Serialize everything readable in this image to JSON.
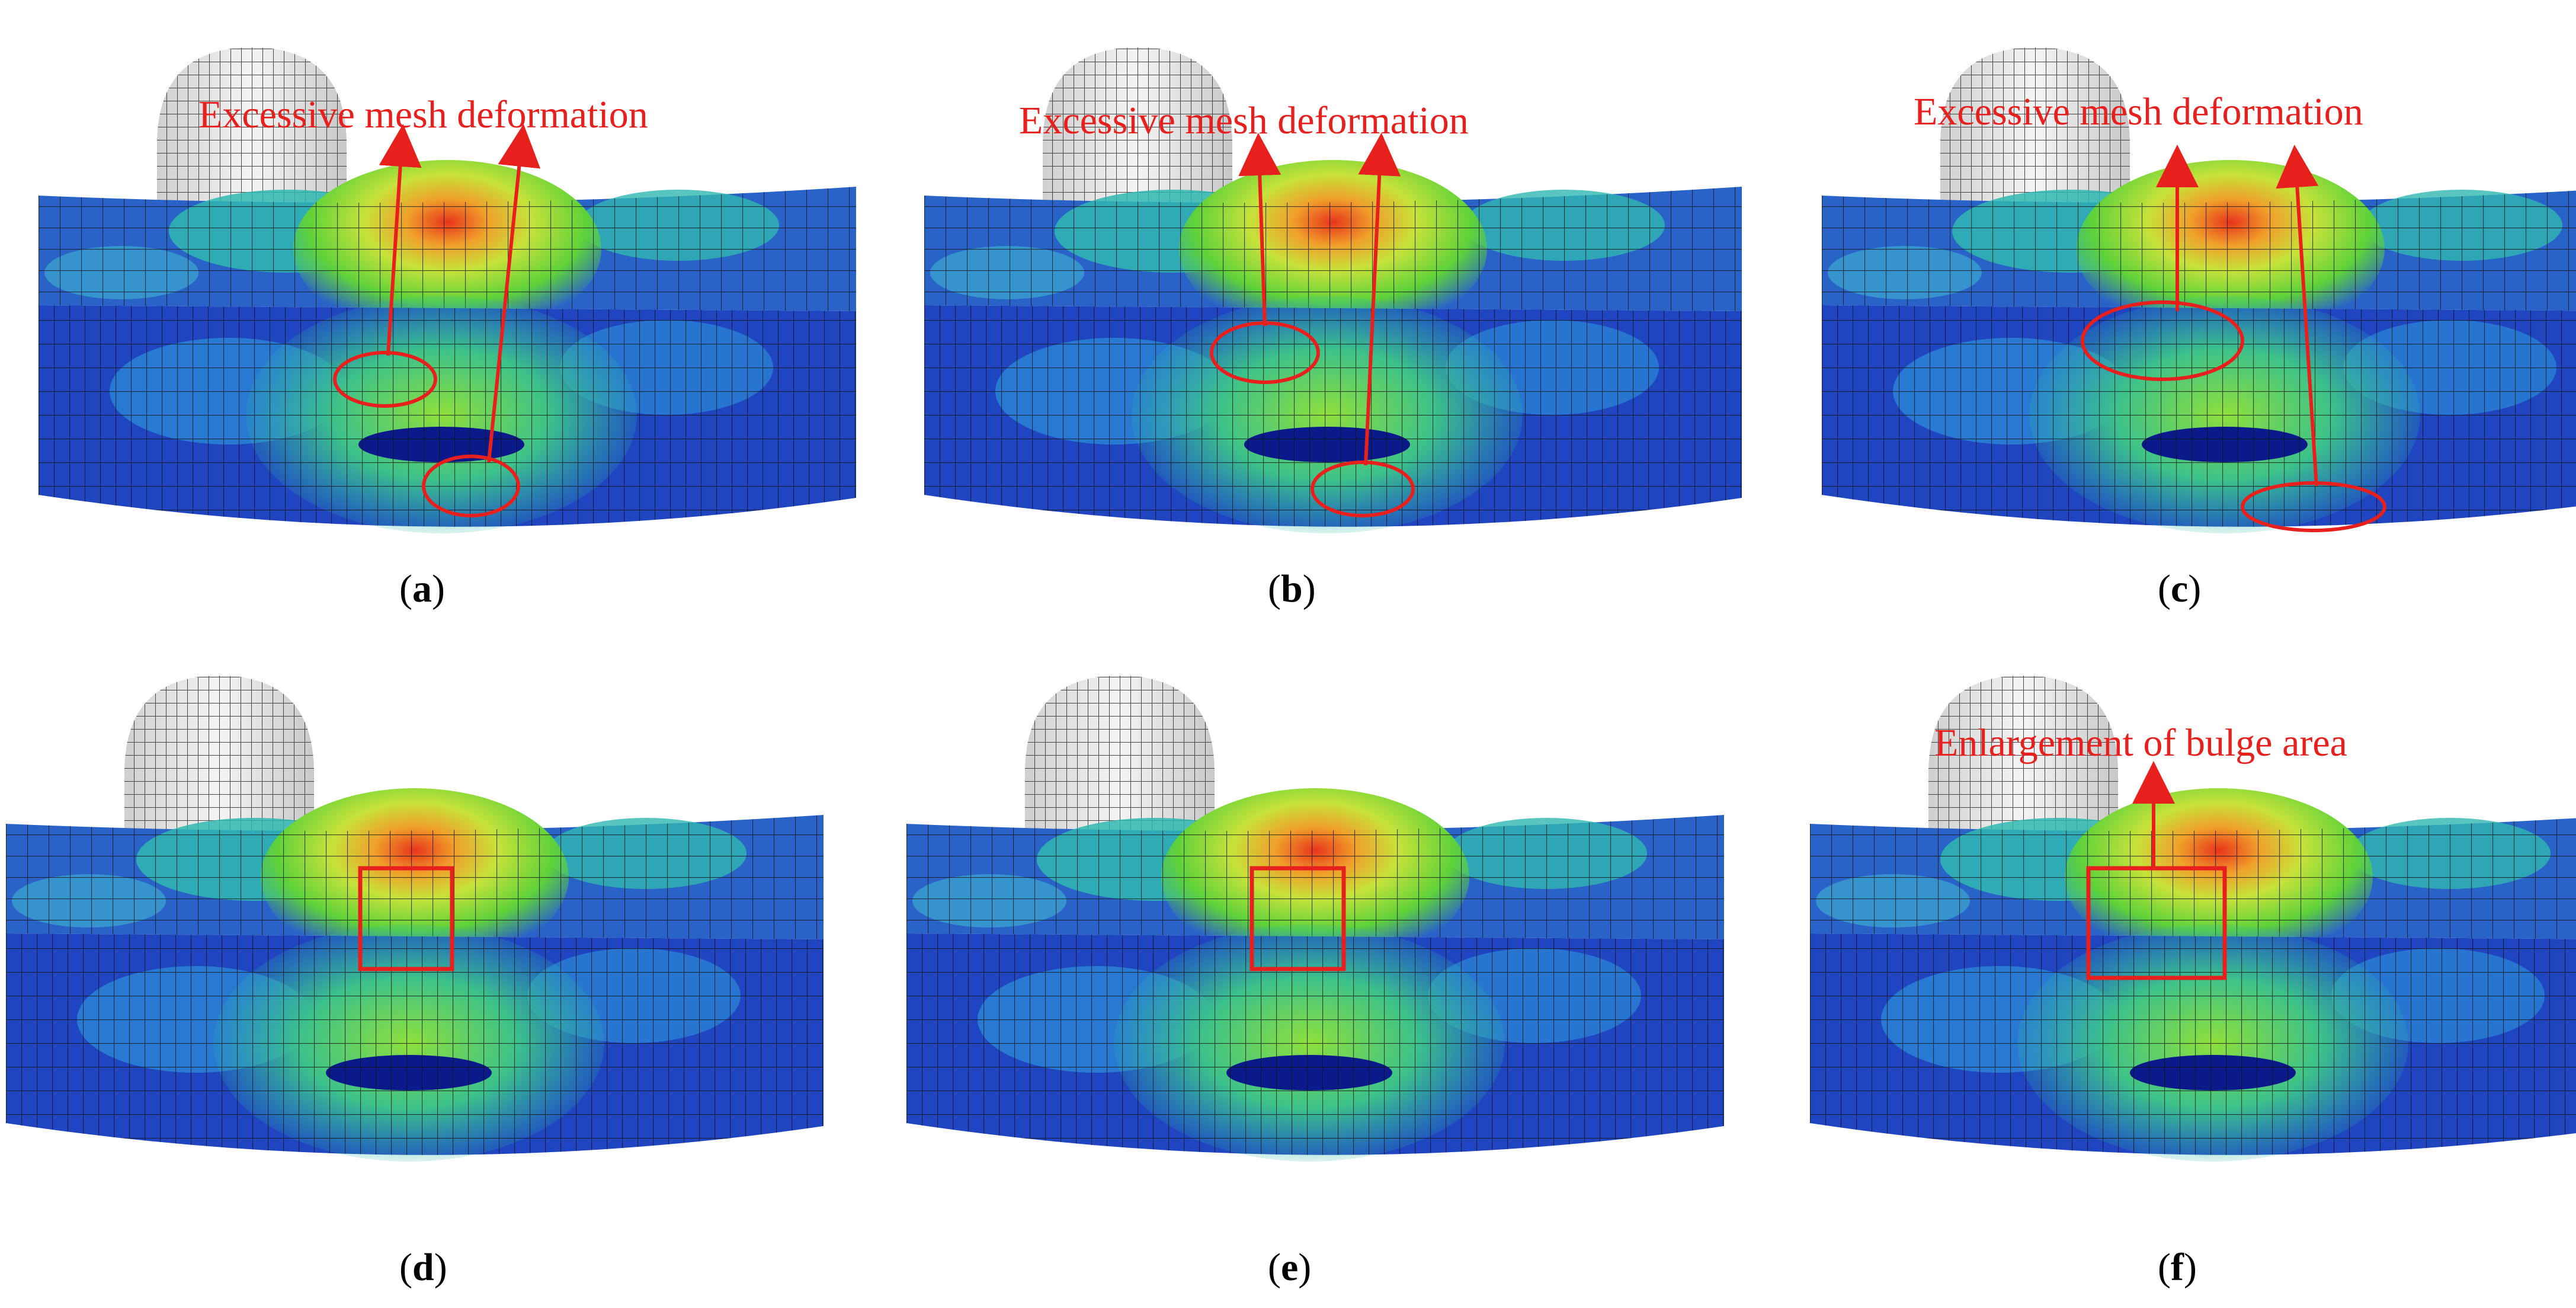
{
  "panels": [
    {
      "id": "a",
      "caption": "a",
      "annotation": "Excessive mesh deformation"
    },
    {
      "id": "b",
      "caption": "b",
      "annotation": "Excessive mesh deformation"
    },
    {
      "id": "c",
      "caption": "c",
      "annotation": "Excessive mesh deformation"
    },
    {
      "id": "d",
      "caption": "d",
      "annotation": ""
    },
    {
      "id": "e",
      "caption": "e",
      "annotation": ""
    },
    {
      "id": "f",
      "caption": "f",
      "annotation": "Enlargement of bulge area"
    }
  ],
  "colors": {
    "annotation": "#e8201d",
    "contour_low": "#1f36b8",
    "contour_mid": "#2fb7b0",
    "contour_green": "#5fd23a",
    "contour_high": "#f0a02a",
    "contour_peak": "#e8341c",
    "indenter": "#e4e4e4"
  }
}
